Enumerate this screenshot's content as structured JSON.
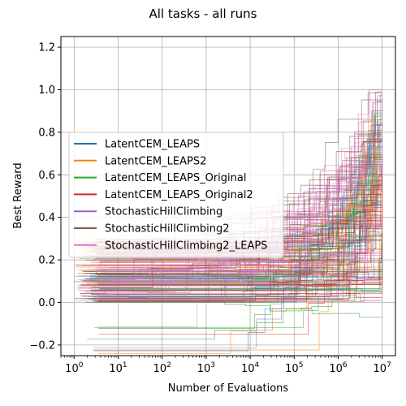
{
  "chart_data": {
    "type": "line",
    "title": "All tasks - all runs",
    "xlabel": "Number of Evaluations",
    "ylabel": "Best Reward",
    "xscale": "log",
    "xlim": [
      0.5,
      20000000
    ],
    "ylim": [
      -0.25,
      1.25
    ],
    "x_ticks": [
      {
        "value": 1,
        "base": "10",
        "exp": "0"
      },
      {
        "value": 10,
        "base": "10",
        "exp": "1"
      },
      {
        "value": 100,
        "base": "10",
        "exp": "2"
      },
      {
        "value": 1000,
        "base": "10",
        "exp": "3"
      },
      {
        "value": 10000,
        "base": "10",
        "exp": "4"
      },
      {
        "value": 100000,
        "base": "10",
        "exp": "5"
      },
      {
        "value": 1000000,
        "base": "10",
        "exp": "6"
      },
      {
        "value": 10000000,
        "base": "10",
        "exp": "7"
      }
    ],
    "y_ticks": [
      {
        "value": -0.2,
        "label": "−0.2"
      },
      {
        "value": 0.0,
        "label": "0.0"
      },
      {
        "value": 0.2,
        "label": "0.2"
      },
      {
        "value": 0.4,
        "label": "0.4"
      },
      {
        "value": 0.6,
        "label": "0.6"
      },
      {
        "value": 0.8,
        "label": "0.8"
      },
      {
        "value": 1.0,
        "label": "1.0"
      },
      {
        "value": 1.2,
        "label": "1.2"
      }
    ],
    "grid": true,
    "legend_position": "center-left",
    "series": [
      {
        "name": "LatentCEM_LEAPS",
        "color": "#1f77b4",
        "start_x": 1,
        "final_values": [
          0.35,
          0.5,
          0.62,
          0.75,
          0.86,
          0.9,
          0.95
        ],
        "step_at": [
          5000,
          20000,
          80000,
          300000,
          1000000,
          3000000,
          6000000
        ]
      },
      {
        "name": "LatentCEM_LEAPS2",
        "color": "#ff7f0e",
        "start_x": 1,
        "final_values": [
          0.2,
          0.4,
          0.55,
          0.7,
          0.85,
          0.92,
          0.97
        ],
        "step_at": [
          3000,
          15000,
          50000,
          200000,
          800000,
          2000000,
          5000000
        ]
      },
      {
        "name": "LatentCEM_LEAPS_Original",
        "color": "#2ca02c",
        "start_x": 1,
        "final_values": [
          0.0,
          0.3,
          0.45,
          0.6,
          0.72,
          0.88,
          0.93
        ],
        "step_at": [
          2000,
          10000,
          40000,
          150000,
          600000,
          2500000,
          8000000
        ]
      },
      {
        "name": "LatentCEM_LEAPS_Original2",
        "color": "#d62728",
        "start_x": 1,
        "final_values": [
          0.05,
          0.08,
          0.35,
          0.48,
          0.6,
          0.8,
          0.86
        ],
        "step_at": [
          4000,
          12000,
          60000,
          250000,
          900000,
          3500000,
          9000000
        ]
      },
      {
        "name": "StochasticHillClimbing",
        "color": "#9467bd",
        "start_x": 1,
        "final_values": [
          0.1,
          0.25,
          0.42,
          0.58,
          0.7,
          0.83,
          0.96
        ],
        "step_at": [
          6,
          40,
          300,
          2500,
          20000,
          200000,
          2000000
        ]
      },
      {
        "name": "StochasticHillClimbing2",
        "color": "#8c564b",
        "start_x": 1,
        "final_values": [
          0.15,
          0.33,
          0.5,
          0.66,
          0.78,
          0.94,
          1.0
        ],
        "step_at": [
          3,
          20,
          150,
          1200,
          10000,
          100000,
          1000000
        ]
      },
      {
        "name": "StochasticHillClimbing2_LEAPS",
        "color": "#e377c2",
        "start_x": 1,
        "final_values": [
          0.2,
          0.38,
          0.52,
          0.64,
          0.75,
          0.99,
          0.35
        ],
        "step_at": [
          4,
          25,
          180,
          1500,
          12000,
          120000,
          1200000
        ]
      }
    ]
  }
}
